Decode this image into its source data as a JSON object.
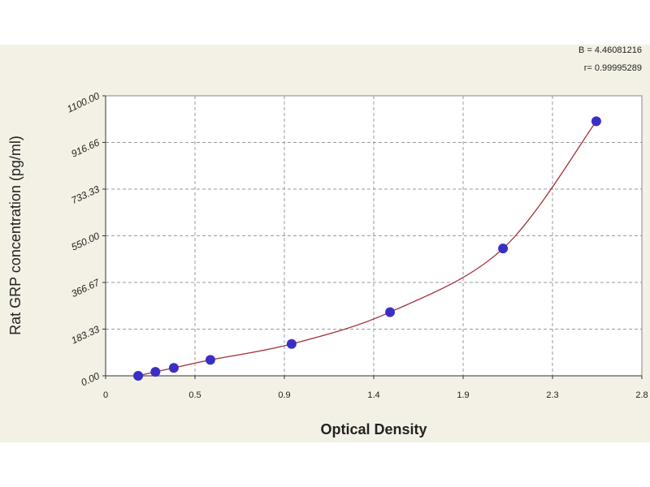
{
  "chart_data": {
    "type": "scatter",
    "x_label": "Optical Density",
    "y_label": "Rat GRP concentration (pg/ml)",
    "annotations": [
      "B = 4.46081216",
      "r= 0.99995289"
    ],
    "x": [
      0.17,
      0.26,
      0.356,
      0.547,
      0.971,
      1.485,
      2.075,
      2.562
    ],
    "values": [
      0,
      15.6,
      31.25,
      62.5,
      125,
      250,
      500,
      1000
    ],
    "color": "#3a2fc4",
    "curve_color": "#a3303a",
    "xlim": [
      0,
      2.8
    ],
    "xticks": [
      0,
      {
        "value": 0.4667,
        "label": "0.5"
      },
      {
        "value": 0.9333,
        "label": "0.9"
      },
      1.4,
      {
        "value": 1.8667,
        "label": "1.9"
      },
      {
        "value": 2.3333,
        "label": "2.3"
      },
      2.8
    ],
    "ylim": [
      0,
      1100
    ],
    "yticks": [
      {
        "value": 0,
        "label": "0.00"
      },
      183.33,
      366.67,
      {
        "value": 550,
        "label": "550.00"
      },
      733.33,
      916.66,
      {
        "value": 1100,
        "label": "1100.00"
      }
    ],
    "grid": true
  }
}
